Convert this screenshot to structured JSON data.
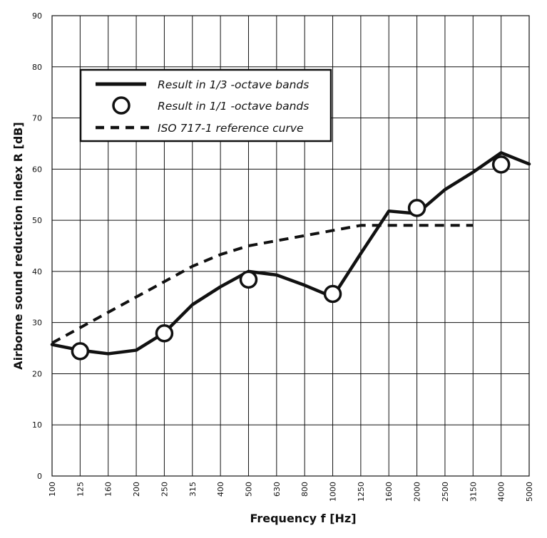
{
  "chart_data": {
    "type": "line",
    "x": [
      "100",
      "125",
      "160",
      "200",
      "250",
      "315",
      "400",
      "500",
      "630",
      "800",
      "1000",
      "1250",
      "1600",
      "2000",
      "2500",
      "3150",
      "4000",
      "5000"
    ],
    "xlabel": "Frequency f [Hz]",
    "ylabel": "Airborne sound reduction index R [dB]",
    "ylim": [
      0,
      90
    ],
    "yticks": [
      "0",
      "10",
      "20",
      "30",
      "40",
      "50",
      "60",
      "70",
      "80",
      "90"
    ],
    "grid": true,
    "legend_position": "top-left",
    "series": [
      {
        "name": "Result in 1/3 -octave bands",
        "style": "solid",
        "color": "#111111",
        "x": [
          "100",
          "125",
          "160",
          "200",
          "250",
          "315",
          "400",
          "500",
          "630",
          "800",
          "1000",
          "1250",
          "1600",
          "2000",
          "2500",
          "3150",
          "4000",
          "5000"
        ],
        "values": [
          25.7,
          24.6,
          23.9,
          24.6,
          28.0,
          33.5,
          37.0,
          40.0,
          39.3,
          37.3,
          35.0,
          43.5,
          51.8,
          51.3,
          56.0,
          59.4,
          63.2,
          61.0
        ]
      },
      {
        "name": "Result in 1/1 -octave bands",
        "style": "circle-marker",
        "color": "#111111",
        "x": [
          "125",
          "250",
          "500",
          "1000",
          "2000",
          "4000"
        ],
        "values": [
          24.4,
          27.9,
          38.4,
          35.6,
          52.4,
          60.9
        ]
      },
      {
        "name": "ISO 717-1 reference curve",
        "style": "dashed",
        "color": "#111111",
        "x": [
          "100",
          "125",
          "160",
          "200",
          "250",
          "315",
          "400",
          "500",
          "630",
          "800",
          "1000",
          "1250",
          "1600",
          "2000",
          "2500",
          "3150"
        ],
        "values": [
          26.0,
          29.0,
          32.0,
          35.0,
          38.0,
          41.0,
          43.3,
          45.0,
          46.0,
          47.0,
          48.0,
          49.0,
          49.0,
          49.0,
          49.0,
          49.0
        ]
      }
    ]
  }
}
